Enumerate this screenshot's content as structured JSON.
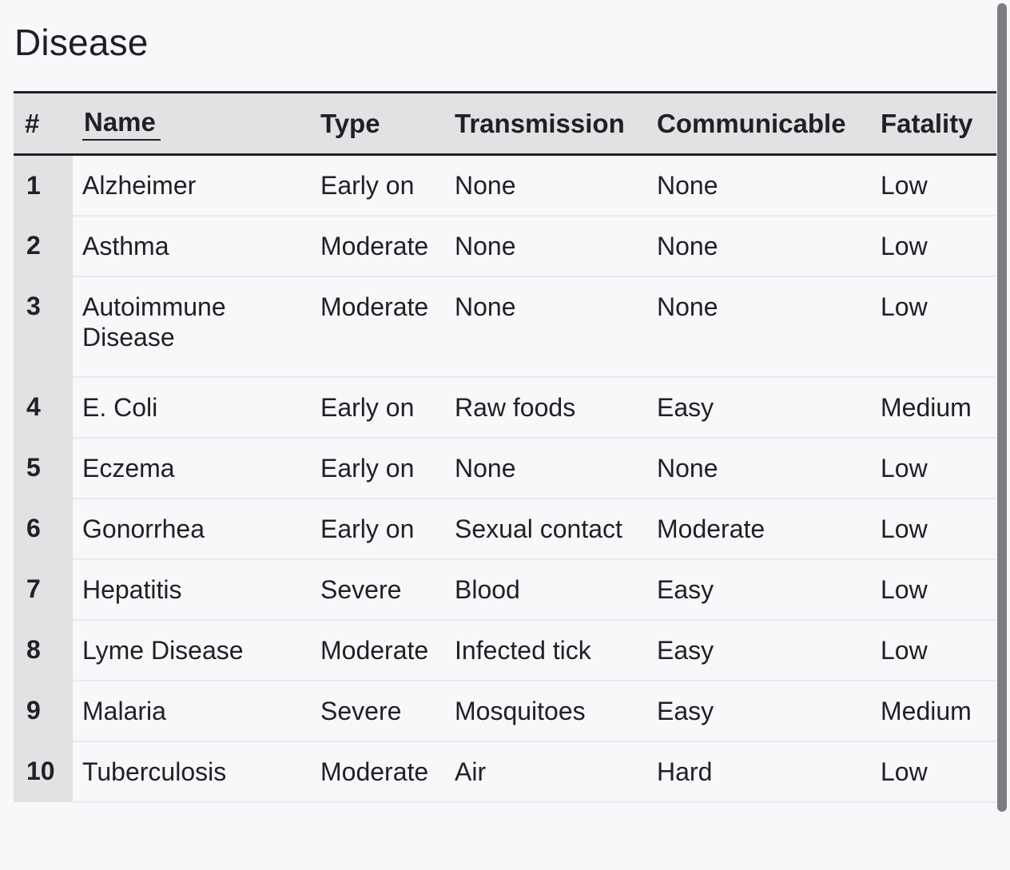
{
  "page": {
    "title": "Disease"
  },
  "table": {
    "columns": [
      "#",
      "Name",
      "Type",
      "Transmission",
      "Communicable",
      "Fatality"
    ],
    "sorted_column": "Name",
    "rows": [
      {
        "num": "1",
        "name": "Alzheimer",
        "type": "Early on",
        "transmission": "None",
        "communicable": "None",
        "fatality": "Low"
      },
      {
        "num": "2",
        "name": "Asthma",
        "type": "Moderate",
        "transmission": "None",
        "communicable": "None",
        "fatality": "Low"
      },
      {
        "num": "3",
        "name": "Autoimmune Disease",
        "type": "Moderate",
        "transmission": "None",
        "communicable": "None",
        "fatality": "Low"
      },
      {
        "num": "4",
        "name": "E. Coli",
        "type": "Early on",
        "transmission": "Raw foods",
        "communicable": "Easy",
        "fatality": "Medium"
      },
      {
        "num": "5",
        "name": "Eczema",
        "type": "Early on",
        "transmission": "None",
        "communicable": "None",
        "fatality": "Low"
      },
      {
        "num": "6",
        "name": "Gonorrhea",
        "type": "Early on",
        "transmission": "Sexual contact",
        "communicable": "Moderate",
        "fatality": "Low"
      },
      {
        "num": "7",
        "name": "Hepatitis",
        "type": "Severe",
        "transmission": "Blood",
        "communicable": "Easy",
        "fatality": "Low"
      },
      {
        "num": "8",
        "name": "Lyme Disease",
        "type": "Moderate",
        "transmission": "Infected tick",
        "communicable": "Easy",
        "fatality": "Low"
      },
      {
        "num": "9",
        "name": "Malaria",
        "type": "Severe",
        "transmission": "Mosquitoes",
        "communicable": "Easy",
        "fatality": "Medium"
      },
      {
        "num": "10",
        "name": "Tuberculosis",
        "type": "Moderate",
        "transmission": "Air",
        "communicable": "Hard",
        "fatality": "Low"
      }
    ]
  },
  "colors": {
    "background": "#f7f8fa",
    "header_bg": "#e2e2e4",
    "text": "#202124",
    "row_divider": "#e9eaed",
    "scrollbar": "#7c7c80"
  }
}
